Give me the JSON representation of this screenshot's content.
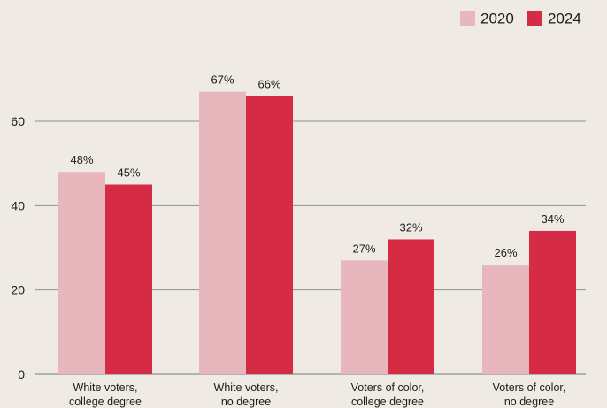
{
  "chart_data": {
    "type": "bar",
    "categories": [
      [
        "White voters,",
        "college degree"
      ],
      [
        "White voters,",
        "no degree"
      ],
      [
        "Voters of color,",
        "college degree"
      ],
      [
        "Voters of color,",
        "no degree"
      ]
    ],
    "series": [
      {
        "name": "2020",
        "values": [
          48,
          67,
          27,
          26
        ],
        "labels": [
          "48%",
          "67%",
          "27%",
          "26%"
        ],
        "color": "#e7b7bd"
      },
      {
        "name": "2024",
        "values": [
          45,
          66,
          32,
          34
        ],
        "labels": [
          "45%",
          "66%",
          "32%",
          "34%"
        ],
        "color": "#d62b45"
      }
    ],
    "yticks": [
      "0",
      "20",
      "40",
      "60"
    ],
    "ylim": [
      0,
      70
    ],
    "grid": true,
    "legend_position": "top-right",
    "title": "",
    "xlabel": "",
    "ylabel": ""
  },
  "colors": {
    "background": "#efebe4",
    "gridline": "#8f8f8f",
    "text": "#1c1c1c"
  }
}
